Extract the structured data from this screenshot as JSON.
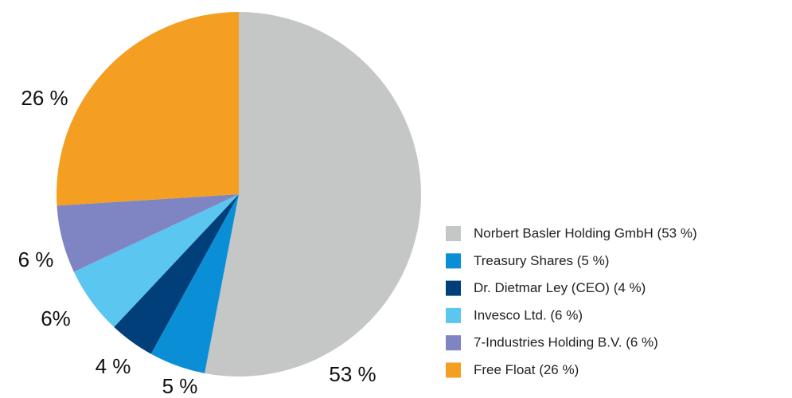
{
  "chart_data": {
    "type": "pie",
    "categories": [
      "Norbert Basler Holding GmbH (53 %)",
      "Treasury Shares (5 %)",
      "Dr. Dietmar Ley (CEO) (4 %)",
      "Invesco Ltd. (6 %)",
      "7-Industries Holding B.V. (6 %)",
      "Free Float (26 %)"
    ],
    "values": [
      53,
      5,
      4,
      6,
      6,
      26
    ],
    "value_labels": [
      "53 %",
      "5 %",
      "4 %",
      "6%",
      "6 %",
      "26 %"
    ],
    "colors": [
      "#c5c6c6",
      "#0a8fd6",
      "#003f7a",
      "#5bc6f0",
      "#7f84c2",
      "#f49f22"
    ],
    "legend": "right"
  }
}
